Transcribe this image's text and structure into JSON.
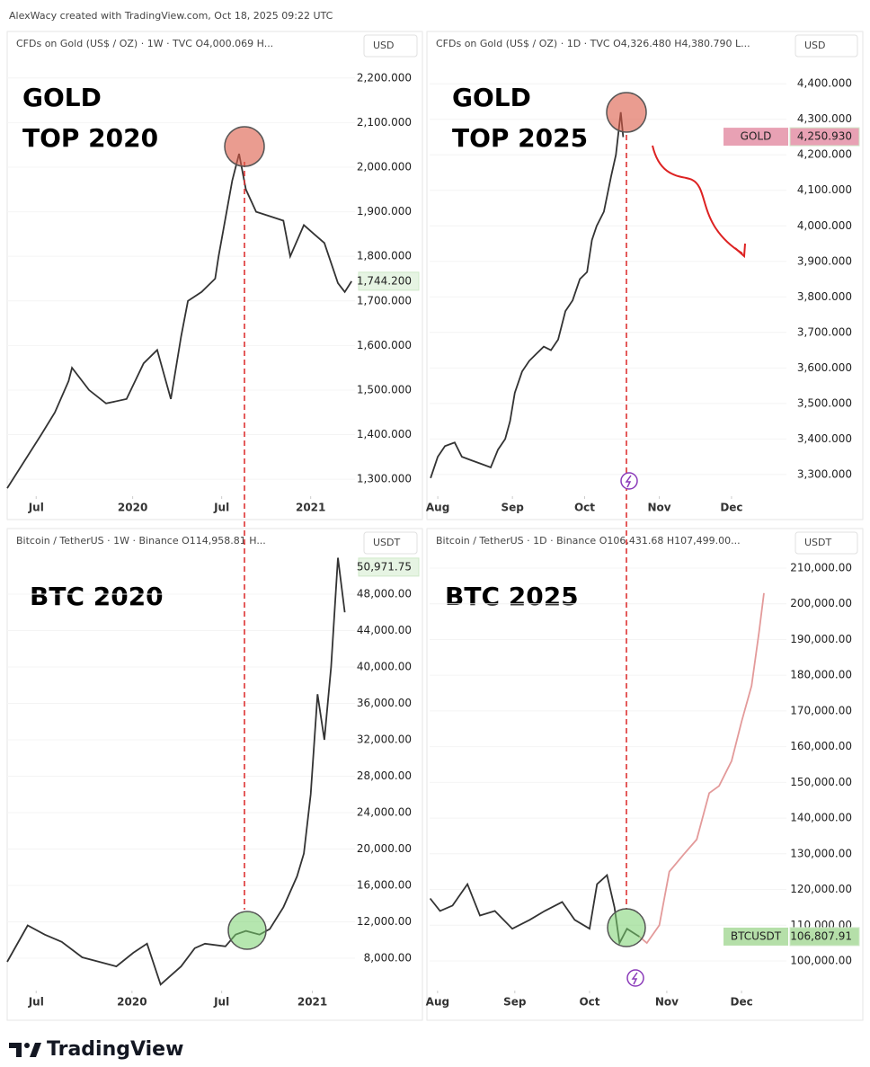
{
  "header": "AlexWacy created with TradingView.com, Oct 18, 2025 09:22 UTC",
  "footer": "TradingView",
  "chart_data": [
    {
      "type": "line",
      "header": "CFDs on Gold (US$ / OZ) · 1W · TVC O4,000.069 H...",
      "currency": "USD",
      "title": [
        "GOLD",
        "TOP 2020"
      ],
      "xlim": [
        0,
        102
      ],
      "xticks": [
        {
          "value": 8.5,
          "label": "Jul"
        },
        {
          "value": 36.8,
          "label": "2020"
        },
        {
          "value": 62.9,
          "label": "Jul"
        },
        {
          "value": 89,
          "label": "2021"
        }
      ],
      "ylim": [
        1266,
        2254
      ],
      "yticks": [
        {
          "value": 1300,
          "label": "1,300.000"
        },
        {
          "value": 1400,
          "label": "1,400.000"
        },
        {
          "value": 1500,
          "label": "1,500.000"
        },
        {
          "value": 1600,
          "label": "1,600.000"
        },
        {
          "value": 1700,
          "label": "1,700.000"
        },
        {
          "value": 1800,
          "label": "1,800.000"
        },
        {
          "value": 1900,
          "label": "1,900.000"
        },
        {
          "value": 2000,
          "label": "2,000.000"
        },
        {
          "value": 2100,
          "label": "2,100.000"
        },
        {
          "value": 2200,
          "label": "2,200.000"
        }
      ],
      "price_tag": {
        "value": 1744.2,
        "label": "1,744.200"
      },
      "tag_color": "#e6f4e3",
      "series": [
        {
          "color": "#333333",
          "x": [
            0,
            10,
            14,
            18,
            19,
            24,
            29,
            35,
            40,
            44,
            48,
            51,
            53,
            57,
            61,
            62,
            66,
            68,
            70,
            73,
            77,
            81,
            83,
            87,
            90,
            93,
            97,
            99,
            101
          ],
          "values": [
            1280,
            1400,
            1450,
            1520,
            1550,
            1500,
            1470,
            1480,
            1560,
            1590,
            1480,
            1620,
            1700,
            1720,
            1750,
            1800,
            1970,
            2030,
            1950,
            1900,
            1890,
            1880,
            1800,
            1870,
            1850,
            1830,
            1740,
            1720,
            1744
          ]
        }
      ]
    },
    {
      "type": "line",
      "header": "CFDs on Gold (US$ / OZ) · 1D · TVC O4,326.480 H4,380.790 L...",
      "currency": "USD",
      "title": [
        "GOLD",
        "TOP 2025"
      ],
      "xlim": [
        -3.4,
        144.8
      ],
      "xticks": [
        {
          "value": 0,
          "label": "Aug"
        },
        {
          "value": 31,
          "label": "Sep"
        },
        {
          "value": 61,
          "label": "Oct"
        },
        {
          "value": 92,
          "label": "Nov"
        },
        {
          "value": 122,
          "label": "Dec"
        }
      ],
      "ylim": [
        3244,
        4484
      ],
      "yticks": [
        {
          "value": 3300,
          "label": "3,300.000"
        },
        {
          "value": 3400,
          "label": "3,400.000"
        },
        {
          "value": 3500,
          "label": "3,500.000"
        },
        {
          "value": 3600,
          "label": "3,600.000"
        },
        {
          "value": 3700,
          "label": "3,700.000"
        },
        {
          "value": 3800,
          "label": "3,800.000"
        },
        {
          "value": 3900,
          "label": "3,900.000"
        },
        {
          "value": 4000,
          "label": "4,000.000"
        },
        {
          "value": 4100,
          "label": "4,100.000"
        },
        {
          "value": 4200,
          "label": "4,200.000"
        },
        {
          "value": 4300,
          "label": "4,300.000"
        },
        {
          "value": 4400,
          "label": "4,400.000"
        }
      ],
      "symbol": "GOLD",
      "price_tag": {
        "value": 4250.93,
        "label": "4,250.930"
      },
      "tag_color": "#e8a1b4",
      "series": [
        {
          "color": "#333333",
          "x": [
            -3,
            0,
            3,
            7,
            10,
            14,
            18,
            22,
            25,
            28,
            30,
            32,
            35,
            38,
            41,
            44,
            47,
            50,
            53,
            56,
            59,
            62,
            64,
            66,
            69,
            72,
            74,
            76,
            77
          ],
          "values": [
            3290,
            3350,
            3380,
            3390,
            3350,
            3340,
            3330,
            3320,
            3370,
            3400,
            3450,
            3530,
            3590,
            3620,
            3640,
            3660,
            3650,
            3680,
            3760,
            3790,
            3850,
            3870,
            3960,
            4000,
            4040,
            4140,
            4200,
            4320,
            4250
          ]
        }
      ]
    },
    {
      "type": "line",
      "header": "Bitcoin / TetherUS · 1W · Binance O114,958.81 H...",
      "currency": "USDT",
      "title": [
        "BTC 2020"
      ],
      "xlim": [
        0,
        102
      ],
      "xticks": [
        {
          "value": 8.5,
          "label": "Jul"
        },
        {
          "value": 36.6,
          "label": "2020"
        },
        {
          "value": 62.9,
          "label": "Jul"
        },
        {
          "value": 89.5,
          "label": "2021"
        }
      ],
      "ylim": [
        4640,
        52540
      ],
      "yticks": [
        {
          "value": 8000,
          "label": "8,000.00"
        },
        {
          "value": 12000,
          "label": "12,000.00"
        },
        {
          "value": 16000,
          "label": "16,000.00"
        },
        {
          "value": 20000,
          "label": "20,000.00"
        },
        {
          "value": 24000,
          "label": "24,000.00"
        },
        {
          "value": 28000,
          "label": "28,000.00"
        },
        {
          "value": 32000,
          "label": "32,000.00"
        },
        {
          "value": 36000,
          "label": "36,000.00"
        },
        {
          "value": 40000,
          "label": "40,000.00"
        },
        {
          "value": 44000,
          "label": "44,000.00"
        },
        {
          "value": 48000,
          "label": "48,000.00"
        }
      ],
      "price_tag": {
        "value": 50971.75,
        "label": "50,971.75"
      },
      "tag_color": "#e6f4e3",
      "series": [
        {
          "color": "#333333",
          "x": [
            0,
            6,
            11,
            16,
            22,
            27,
            32,
            37,
            41,
            45,
            48,
            51,
            55,
            58,
            64,
            67,
            70,
            74,
            77,
            81,
            85,
            87,
            89,
            91,
            93,
            95,
            97,
            99
          ],
          "values": [
            7600,
            11600,
            10600,
            9800,
            8100,
            7600,
            7100,
            8600,
            9600,
            5100,
            6100,
            7100,
            9100,
            9600,
            9300,
            10600,
            11000,
            10600,
            11200,
            13600,
            17000,
            19500,
            26000,
            37000,
            32000,
            40000,
            52000,
            46000
          ]
        }
      ]
    },
    {
      "type": "line",
      "header": "Bitcoin / TetherUS · 1D · Binance O106,431.68 H107,499.00...",
      "currency": "USDT",
      "title": [
        "BTC 2025"
      ],
      "xlim": [
        -3.2,
        140
      ],
      "xticks": [
        {
          "value": 0,
          "label": "Aug"
        },
        {
          "value": 31,
          "label": "Sep"
        },
        {
          "value": 61,
          "label": "Oct"
        },
        {
          "value": 92,
          "label": "Nov"
        },
        {
          "value": 122,
          "label": "Dec"
        }
      ],
      "ylim": [
        92190,
        214280
      ],
      "yticks": [
        {
          "value": 100000,
          "label": "100,000.00"
        },
        {
          "value": 110000,
          "label": "110,000.00"
        },
        {
          "value": 120000,
          "label": "120,000.00"
        },
        {
          "value": 130000,
          "label": "130,000.00"
        },
        {
          "value": 140000,
          "label": "140,000.00"
        },
        {
          "value": 150000,
          "label": "150,000.00"
        },
        {
          "value": 160000,
          "label": "160,000.00"
        },
        {
          "value": 170000,
          "label": "170,000.00"
        },
        {
          "value": 180000,
          "label": "180,000.00"
        },
        {
          "value": 190000,
          "label": "190,000.00"
        },
        {
          "value": 200000,
          "label": "200,000.00"
        },
        {
          "value": 210000,
          "label": "210,000.00"
        }
      ],
      "symbol": "BTCUSDT",
      "price_tag": {
        "value": 106807.91,
        "label": "106,807.91"
      },
      "tag_color": "#b5dfa9",
      "series": [
        {
          "color": "#333333",
          "x": [
            -3,
            1,
            6,
            12,
            17,
            23,
            30,
            37,
            43,
            50,
            55,
            61,
            64,
            68,
            71,
            73,
            76,
            81
          ],
          "values": [
            117500,
            114000,
            115500,
            121500,
            112700,
            114000,
            109000,
            111500,
            114000,
            116500,
            111500,
            109000,
            121500,
            124000,
            115000,
            105000,
            109000,
            106800
          ]
        },
        {
          "color": "#e39a9a",
          "x": [
            81,
            84,
            89,
            93,
            99,
            104,
            109,
            113,
            118,
            122,
            126,
            129,
            131
          ],
          "values": [
            106800,
            105000,
            110000,
            125000,
            130000,
            134000,
            147000,
            149000,
            156000,
            167000,
            177000,
            192000,
            203000
          ]
        }
      ]
    }
  ]
}
